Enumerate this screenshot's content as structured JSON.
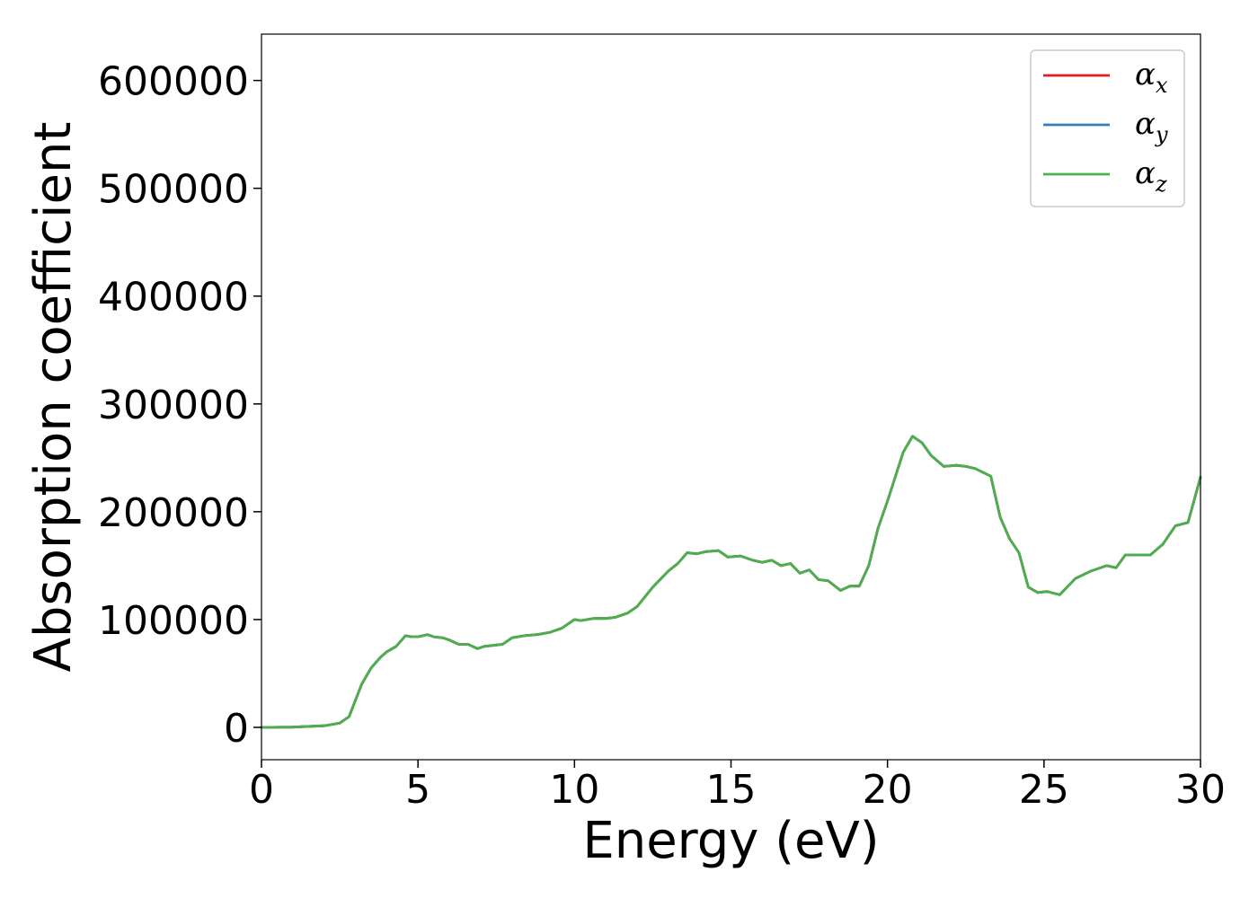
{
  "chart_data": {
    "type": "line",
    "title": "",
    "xlabel": "Energy (eV)",
    "ylabel": "Absorption coefficient",
    "xlim": [
      0,
      30
    ],
    "ylim": [
      -30000,
      643000
    ],
    "xticks": [
      0,
      5,
      10,
      15,
      20,
      25,
      30
    ],
    "yticks": [
      0,
      100000,
      200000,
      300000,
      400000,
      500000,
      600000
    ],
    "grid": false,
    "legend_position": "top-right",
    "series": [
      {
        "name": "α_x",
        "symbol": "α",
        "subscript": "x",
        "color": "#e41a1c",
        "x": [
          0,
          1,
          2,
          2.5,
          2.8,
          3.0,
          3.2,
          3.5,
          3.8,
          4.0,
          4.3,
          4.6,
          4.8,
          5.0,
          5.3,
          5.5,
          5.8,
          6.0,
          6.3,
          6.6,
          6.9,
          7.1,
          7.4,
          7.7,
          8.0,
          8.4,
          8.8,
          9.2,
          9.6,
          10.0,
          10.2,
          10.6,
          11.0,
          11.3,
          11.7,
          12.0,
          12.5,
          13.0,
          13.3,
          13.6,
          13.9,
          14.2,
          14.6,
          14.9,
          15.3,
          15.7,
          16.0,
          16.3,
          16.6,
          16.9,
          17.2,
          17.5,
          17.8,
          18.1,
          18.5,
          18.8,
          19.1,
          19.4,
          19.7,
          20.0,
          20.5,
          20.8,
          21.1,
          21.4,
          21.8,
          22.2,
          22.5,
          22.8,
          23.3,
          23.6,
          23.9,
          24.2,
          24.5,
          24.8,
          25.1,
          25.5,
          26.0,
          26.5,
          27.0,
          27.3,
          27.6,
          28.0,
          28.4,
          28.8,
          29.2,
          29.6,
          30.0
        ],
        "y": [
          0,
          200,
          1500,
          4000,
          10000,
          25000,
          40000,
          55000,
          65000,
          70000,
          75000,
          85000,
          84000,
          84000,
          86000,
          84000,
          83000,
          81000,
          77000,
          77000,
          73000,
          75000,
          76000,
          77000,
          83000,
          85000,
          86000,
          88000,
          92000,
          100000,
          99000,
          101000,
          101000,
          102000,
          106000,
          112000,
          130000,
          145000,
          152000,
          162000,
          161000,
          163000,
          164000,
          158000,
          159000,
          155000,
          153000,
          155000,
          150000,
          152000,
          143000,
          146000,
          137000,
          136000,
          127000,
          131000,
          131000,
          150000,
          185000,
          210000,
          255000,
          270000,
          264000,
          252000,
          242000,
          243000,
          242000,
          240000,
          233000,
          195000,
          175000,
          162000,
          130000,
          125000,
          126000,
          123000,
          138000,
          145000,
          150000,
          148000,
          160000,
          160000,
          160000,
          170000,
          187000,
          190000,
          232000
        ]
      },
      {
        "name": "α_y",
        "symbol": "α",
        "subscript": "y",
        "color": "#377eb8",
        "x": [
          0,
          1,
          2,
          2.5,
          2.8,
          3.0,
          3.2,
          3.5,
          3.8,
          4.0,
          4.3,
          4.6,
          4.8,
          5.0,
          5.3,
          5.5,
          5.8,
          6.0,
          6.3,
          6.6,
          6.9,
          7.1,
          7.4,
          7.7,
          8.0,
          8.4,
          8.8,
          9.2,
          9.6,
          10.0,
          10.2,
          10.6,
          11.0,
          11.3,
          11.7,
          12.0,
          12.5,
          13.0,
          13.3,
          13.6,
          13.9,
          14.2,
          14.6,
          14.9,
          15.3,
          15.7,
          16.0,
          16.3,
          16.6,
          16.9,
          17.2,
          17.5,
          17.8,
          18.1,
          18.5,
          18.8,
          19.1,
          19.4,
          19.7,
          20.0,
          20.5,
          20.8,
          21.1,
          21.4,
          21.8,
          22.2,
          22.5,
          22.8,
          23.3,
          23.6,
          23.9,
          24.2,
          24.5,
          24.8,
          25.1,
          25.5,
          26.0,
          26.5,
          27.0,
          27.3,
          27.6,
          28.0,
          28.4,
          28.8,
          29.2,
          29.6,
          30.0
        ],
        "y": [
          0,
          200,
          1500,
          4000,
          10000,
          25000,
          40000,
          55000,
          65000,
          70000,
          75000,
          85000,
          84000,
          84000,
          86000,
          84000,
          83000,
          81000,
          77000,
          77000,
          73000,
          75000,
          76000,
          77000,
          83000,
          85000,
          86000,
          88000,
          92000,
          100000,
          99000,
          101000,
          101000,
          102000,
          106000,
          112000,
          130000,
          145000,
          152000,
          162000,
          161000,
          163000,
          164000,
          158000,
          159000,
          155000,
          153000,
          155000,
          150000,
          152000,
          143000,
          146000,
          137000,
          136000,
          127000,
          131000,
          131000,
          150000,
          185000,
          210000,
          255000,
          270000,
          264000,
          252000,
          242000,
          243000,
          242000,
          240000,
          233000,
          195000,
          175000,
          162000,
          130000,
          125000,
          126000,
          123000,
          138000,
          145000,
          150000,
          148000,
          160000,
          160000,
          160000,
          170000,
          187000,
          190000,
          232000
        ]
      },
      {
        "name": "α_z",
        "symbol": "α",
        "subscript": "z",
        "color": "#4daf4a",
        "x": [
          0,
          1,
          2,
          2.5,
          2.8,
          3.0,
          3.2,
          3.5,
          3.8,
          4.0,
          4.3,
          4.6,
          4.8,
          5.0,
          5.3,
          5.5,
          5.8,
          6.0,
          6.3,
          6.6,
          6.9,
          7.1,
          7.4,
          7.7,
          8.0,
          8.4,
          8.8,
          9.2,
          9.6,
          10.0,
          10.2,
          10.6,
          11.0,
          11.3,
          11.7,
          12.0,
          12.5,
          13.0,
          13.3,
          13.6,
          13.9,
          14.2,
          14.6,
          14.9,
          15.3,
          15.7,
          16.0,
          16.3,
          16.6,
          16.9,
          17.2,
          17.5,
          17.8,
          18.1,
          18.5,
          18.8,
          19.1,
          19.4,
          19.7,
          20.0,
          20.5,
          20.8,
          21.1,
          21.4,
          21.8,
          22.2,
          22.5,
          22.8,
          23.3,
          23.6,
          23.9,
          24.2,
          24.5,
          24.8,
          25.1,
          25.5,
          26.0,
          26.5,
          27.0,
          27.3,
          27.6,
          28.0,
          28.4,
          28.8,
          29.2,
          29.6,
          30.0
        ],
        "y": [
          0,
          200,
          1500,
          4000,
          10000,
          25000,
          40000,
          55000,
          65000,
          70000,
          75000,
          85000,
          84000,
          84000,
          86000,
          84000,
          83000,
          81000,
          77000,
          77000,
          73000,
          75000,
          76000,
          77000,
          83000,
          85000,
          86000,
          88000,
          92000,
          100000,
          99000,
          101000,
          101000,
          102000,
          106000,
          112000,
          130000,
          145000,
          152000,
          162000,
          161000,
          163000,
          164000,
          158000,
          159000,
          155000,
          153000,
          155000,
          150000,
          152000,
          143000,
          146000,
          137000,
          136000,
          127000,
          131000,
          131000,
          150000,
          185000,
          210000,
          255000,
          270000,
          264000,
          252000,
          242000,
          243000,
          242000,
          240000,
          233000,
          195000,
          175000,
          162000,
          130000,
          125000,
          126000,
          123000,
          138000,
          145000,
          150000,
          148000,
          160000,
          160000,
          160000,
          170000,
          187000,
          190000,
          232000
        ]
      }
    ]
  }
}
